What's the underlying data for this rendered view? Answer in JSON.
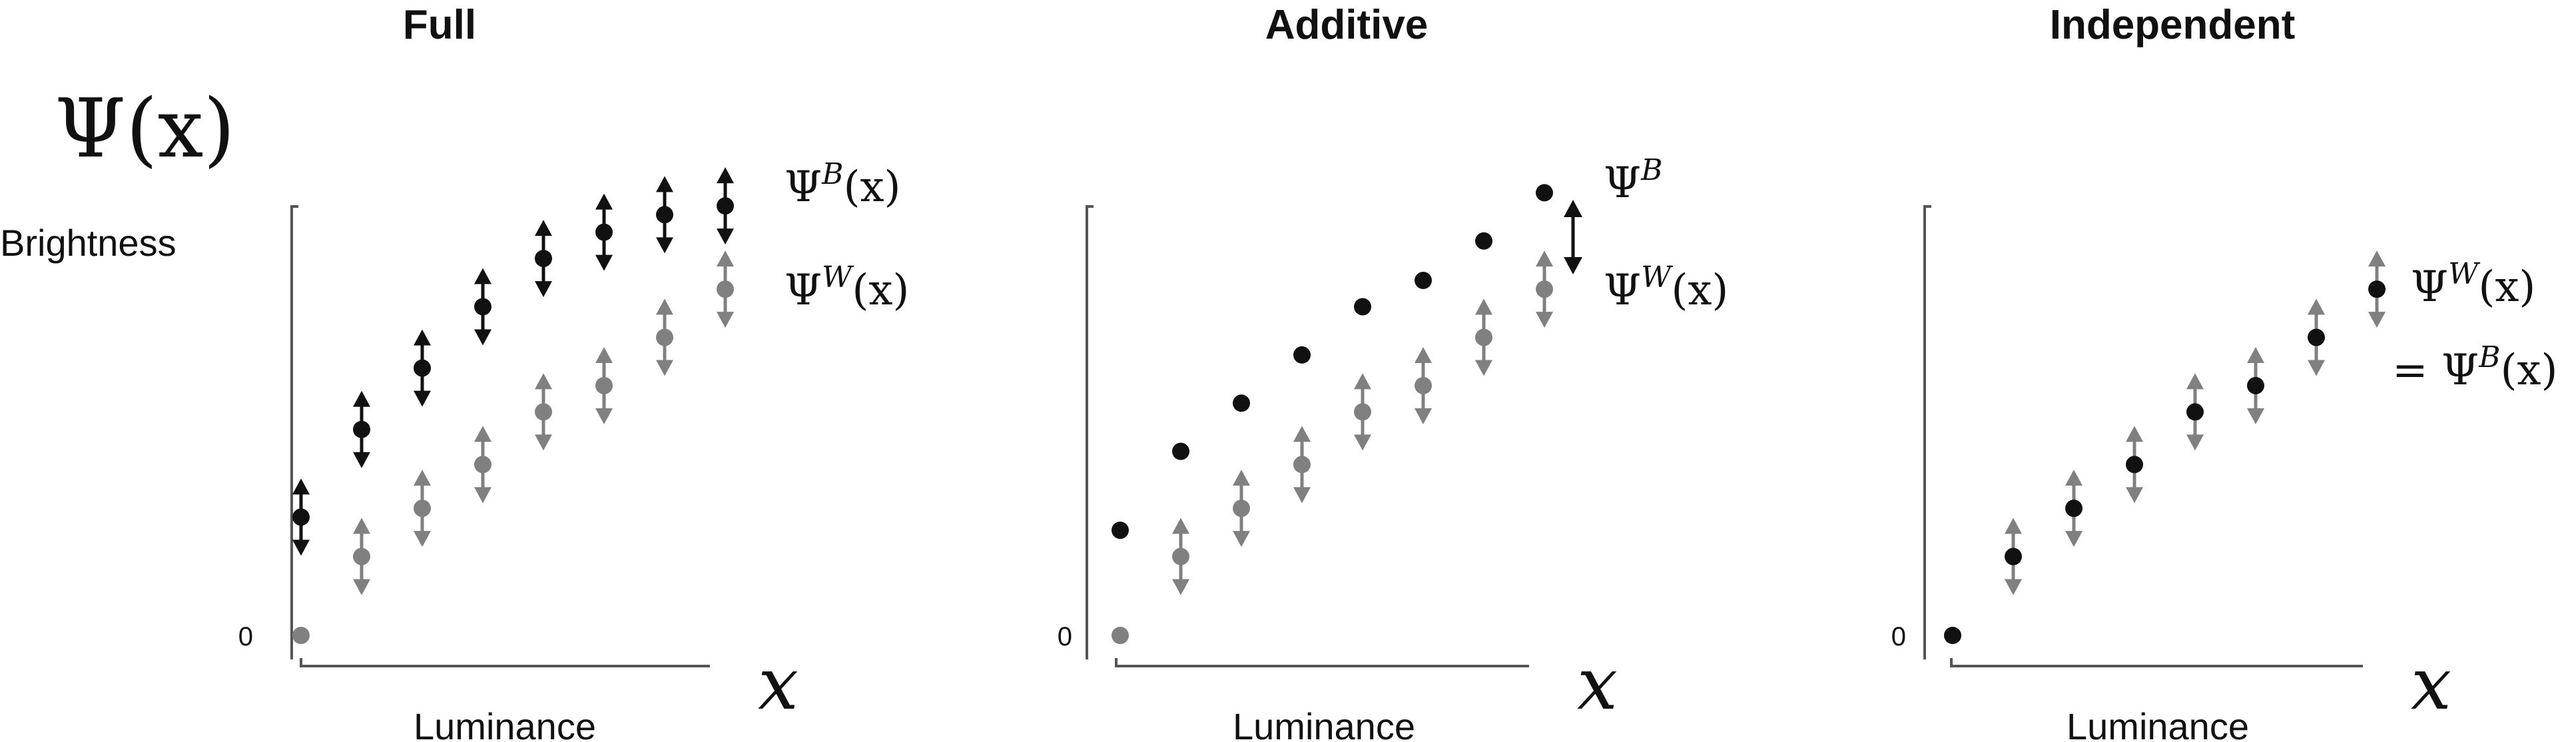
{
  "figure": {
    "y_symbol": "Ψ(x)",
    "y_label": "Brightness",
    "x_label": "Luminance",
    "x_symbol": "x",
    "zero_label": "0"
  },
  "panels": [
    {
      "id": "full",
      "title": "Full",
      "labels": [
        {
          "id": "psi-b",
          "base": "Ψ",
          "sup": "B",
          "arg": "(x)",
          "prefix": ""
        },
        {
          "id": "psi-w",
          "base": "Ψ",
          "sup": "W",
          "arg": "(x)",
          "prefix": ""
        }
      ]
    },
    {
      "id": "additive",
      "title": "Additive",
      "labels": [
        {
          "id": "psi-b",
          "base": "Ψ",
          "sup": "B",
          "arg": "",
          "prefix": ""
        },
        {
          "id": "psi-w",
          "base": "Ψ",
          "sup": "W",
          "arg": "(x)",
          "prefix": ""
        }
      ]
    },
    {
      "id": "independent",
      "title": "Independent",
      "labels": [
        {
          "id": "psi-w",
          "base": "Ψ",
          "sup": "W",
          "arg": "(x)",
          "prefix": ""
        },
        {
          "id": "psi-b",
          "base": "Ψ",
          "sup": "B",
          "arg": "(x)",
          "prefix": "= "
        }
      ]
    }
  ],
  "chart_data": [
    {
      "type": "scatter",
      "title": "Full",
      "xlabel": "Luminance",
      "ylabel": "Brightness",
      "x": [
        0,
        1,
        2,
        3,
        4,
        5,
        6,
        7
      ],
      "series": [
        {
          "name": "Ψ^B(x)",
          "values": [
            0.27,
            0.47,
            0.61,
            0.75,
            0.86,
            0.92,
            0.96,
            0.98
          ],
          "error_arrows": true
        },
        {
          "name": "Ψ^W(x)",
          "values": [
            0.0,
            0.18,
            0.29,
            0.39,
            0.51,
            0.57,
            0.68,
            0.79
          ],
          "error_arrows": true
        }
      ]
    },
    {
      "type": "scatter",
      "title": "Additive",
      "xlabel": "Luminance",
      "ylabel": "Brightness",
      "x": [
        0,
        1,
        2,
        3,
        4,
        5,
        6,
        7
      ],
      "series": [
        {
          "name": "Ψ^B",
          "values": [
            0.24,
            0.42,
            0.53,
            0.64,
            0.75,
            0.81,
            0.9,
            1.01
          ],
          "error_arrows": false
        },
        {
          "name": "Ψ^W(x)",
          "values": [
            0.0,
            0.18,
            0.29,
            0.39,
            0.51,
            0.57,
            0.68,
            0.79
          ],
          "error_arrows": true
        }
      ]
    },
    {
      "type": "scatter",
      "title": "Independent",
      "xlabel": "Luminance",
      "ylabel": "Brightness",
      "x": [
        0,
        1,
        2,
        3,
        4,
        5,
        6,
        7
      ],
      "series": [
        {
          "name": "Ψ^W(x) = Ψ^B(x)",
          "values": [
            0.0,
            0.18,
            0.29,
            0.39,
            0.51,
            0.57,
            0.68,
            0.79
          ],
          "error_arrows": true
        }
      ]
    }
  ],
  "colors": {
    "black_series": "#111111",
    "gray_series": "#808080",
    "axis": "#555555"
  }
}
